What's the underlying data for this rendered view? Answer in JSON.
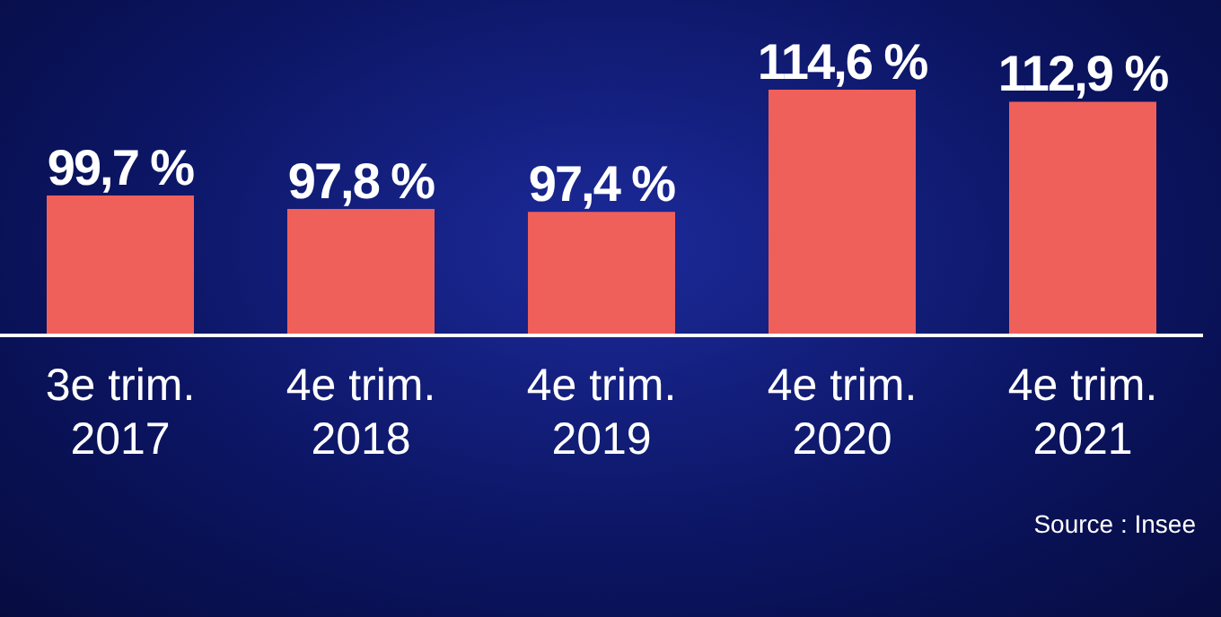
{
  "chart_data": {
    "type": "bar",
    "categories": [
      "3e trim. 2017",
      "4e trim. 2018",
      "4e trim. 2019",
      "4e trim. 2020",
      "4e trim. 2021"
    ],
    "values": [
      99.7,
      97.8,
      97.4,
      114.6,
      112.9
    ],
    "value_labels": [
      "99,7 %",
      "97,8 %",
      "97,4 %",
      "114,6 %",
      "112,9 %"
    ],
    "color": "#f0605a",
    "ylim": [
      80,
      114.6
    ],
    "annotations": [
      "Source : Insee"
    ]
  }
}
